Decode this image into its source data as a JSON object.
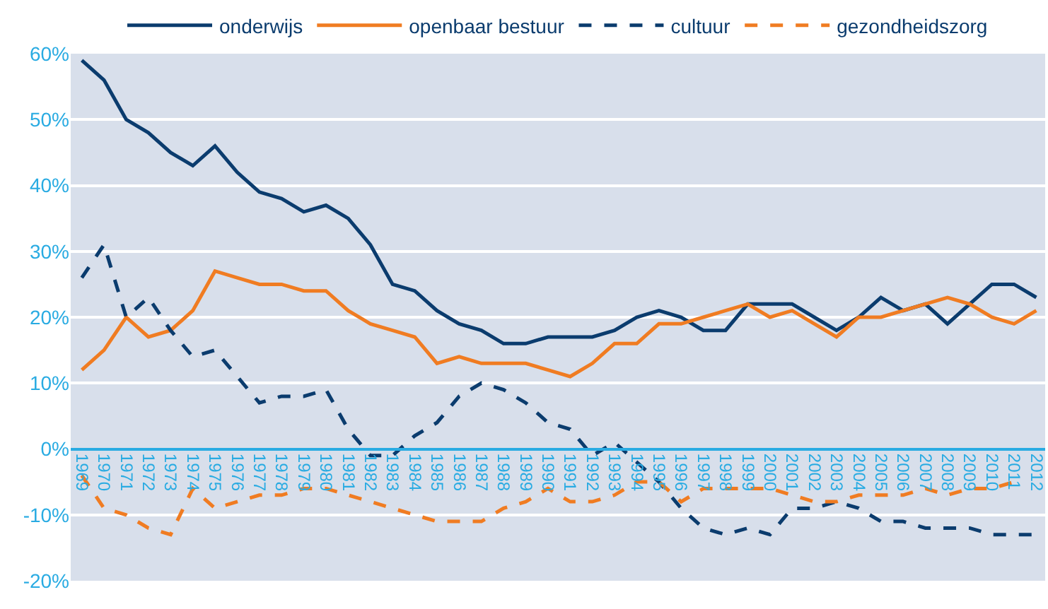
{
  "chart_data": {
    "type": "line",
    "categories": [
      "1969",
      "1970",
      "1971",
      "1972",
      "1973",
      "1974",
      "1975",
      "1976",
      "1977",
      "1978",
      "1979",
      "1980",
      "1981",
      "1982",
      "1983",
      "1984",
      "1985",
      "1986",
      "1987",
      "1988",
      "1989",
      "1990",
      "1991",
      "1992",
      "1993",
      "1994",
      "1995",
      "1996",
      "1997",
      "1998",
      "1999",
      "2000",
      "2001",
      "2002",
      "2003",
      "2004",
      "2005",
      "2006",
      "2007",
      "2008",
      "2009",
      "2010",
      "2011",
      "2012"
    ],
    "series": [
      {
        "name": "onderwijs",
        "color": "#0b3c6e",
        "line_style": "solid",
        "values": [
          59,
          56,
          50,
          48,
          45,
          43,
          46,
          42,
          39,
          38,
          36,
          37,
          35,
          31,
          25,
          24,
          21,
          19,
          18,
          16,
          16,
          17,
          17,
          17,
          18,
          20,
          21,
          20,
          18,
          18,
          22,
          22,
          22,
          20,
          18,
          20,
          23,
          21,
          22,
          19,
          22,
          25,
          25,
          23
        ]
      },
      {
        "name": "openbaar bestuur",
        "color": "#f07c22",
        "line_style": "solid",
        "values": [
          12,
          15,
          20,
          17,
          18,
          21,
          27,
          26,
          25,
          25,
          24,
          24,
          21,
          19,
          18,
          17,
          13,
          14,
          13,
          13,
          13,
          12,
          11,
          13,
          16,
          16,
          19,
          19,
          20,
          21,
          22,
          20,
          21,
          19,
          17,
          20,
          20,
          21,
          22,
          23,
          22,
          20,
          19,
          21
        ]
      },
      {
        "name": "cultuur",
        "color": "#0b3c6e",
        "line_style": "dashed",
        "values": [
          26,
          31,
          20,
          23,
          18,
          14,
          15,
          11,
          7,
          8,
          8,
          9,
          3,
          -1,
          -1,
          2,
          4,
          8,
          10,
          9,
          7,
          4,
          3,
          -1,
          1,
          -2,
          -5,
          -9,
          -12,
          -13,
          -12,
          -13,
          -9,
          -9,
          -8,
          -9,
          -11,
          -11,
          -12,
          -12,
          -12,
          -13,
          -13,
          -13
        ]
      },
      {
        "name": "gezondheidszorg",
        "color": "#f07c22",
        "line_style": "dashed",
        "values": [
          -4,
          -9,
          -10,
          -12,
          -13,
          -6,
          -9,
          -8,
          -7,
          -7,
          -6,
          -6,
          -7,
          -8,
          -9,
          -10,
          -11,
          -11,
          -11,
          -9,
          -8,
          -6,
          -8,
          -8,
          -7,
          -5,
          -5,
          -8,
          -6,
          -6,
          -6,
          -6,
          -7,
          -8,
          -8,
          -7,
          -7,
          -7,
          -6,
          -7,
          -6,
          -6,
          -5,
          null
        ]
      }
    ],
    "ylim": [
      -20,
      60
    ],
    "yticks": [
      {
        "value": -20,
        "label": "-20%"
      },
      {
        "value": -10,
        "label": "-10%"
      },
      {
        "value": 0,
        "label": "0%"
      },
      {
        "value": 10,
        "label": "10%"
      },
      {
        "value": 20,
        "label": "20%"
      },
      {
        "value": 30,
        "label": "30%"
      },
      {
        "value": 40,
        "label": "40%"
      },
      {
        "value": 50,
        "label": "50%"
      },
      {
        "value": 60,
        "label": "60%"
      }
    ],
    "grid": "y",
    "legend": "top",
    "marker": "none"
  }
}
